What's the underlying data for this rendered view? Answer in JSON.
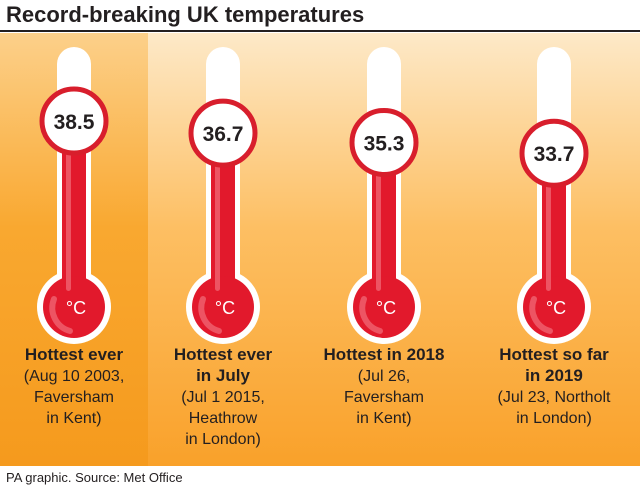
{
  "title": "Record-breaking UK temperatures",
  "footer": "PA graphic. Source: Met Office",
  "colors": {
    "mercury": "#e2192c",
    "tube": "#ffffff",
    "badge_border": "#d81e2c",
    "panel_top": "#fde9c8",
    "panel_bottom": "#f9a12a"
  },
  "chart_data": {
    "type": "bar",
    "unit": "°C",
    "categories": [
      "Hottest ever",
      "Hottest ever in July",
      "Hottest in 2018",
      "Hottest so far in 2019"
    ],
    "values": [
      38.5,
      36.7,
      35.3,
      33.7
    ],
    "labels": [
      "38.5",
      "36.7",
      "35.3",
      "33.7"
    ],
    "captions": [
      {
        "bold": [
          "Hottest ever"
        ],
        "detail": [
          "(Aug 10 2003,",
          "Faversham",
          "in Kent)"
        ]
      },
      {
        "bold": [
          "Hottest ever",
          "in July"
        ],
        "detail": [
          "(Jul 1 2015,",
          "Heathrow",
          "in London)"
        ]
      },
      {
        "bold": [
          "Hottest in 2018"
        ],
        "detail": [
          "(Jul 26,",
          "Faversham",
          "in Kent)"
        ]
      },
      {
        "bold": [
          "Hottest so far",
          "in 2019"
        ],
        "detail": [
          "(Jul 23, Northolt",
          "in London)"
        ]
      }
    ]
  }
}
